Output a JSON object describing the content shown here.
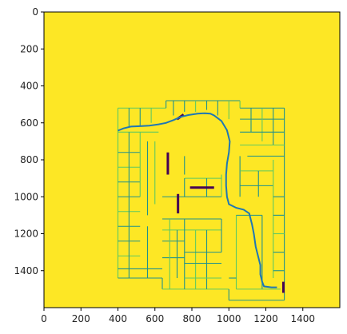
{
  "figure": {
    "type": "imshow-map",
    "xlim": [
      0,
      1600
    ],
    "ylim": [
      1600,
      0
    ],
    "xticks": [
      "0",
      "200",
      "400",
      "600",
      "800",
      "1000",
      "1200",
      "1400"
    ],
    "yticks": [
      "0",
      "200",
      "400",
      "600",
      "800",
      "1000",
      "1200",
      "1400"
    ],
    "colors": {
      "background": "#fde725",
      "walls": "#21918c",
      "walls_light": "#5ec962",
      "dark": "#440154",
      "path": "#1f77b4",
      "frame": "#000000"
    }
  },
  "chart_data": {
    "type": "heatmap",
    "colormap": "viridis",
    "xlim": [
      0,
      1600
    ],
    "ylim": [
      1600,
      0
    ],
    "path": {
      "color": "#1f77b4",
      "points": [
        [
          400,
          642
        ],
        [
          430,
          630
        ],
        [
          470,
          620
        ],
        [
          520,
          618
        ],
        [
          570,
          615
        ],
        [
          620,
          608
        ],
        [
          660,
          600
        ],
        [
          700,
          585
        ],
        [
          740,
          568
        ],
        [
          780,
          558
        ],
        [
          830,
          550
        ],
        [
          870,
          548
        ],
        [
          900,
          550
        ],
        [
          920,
          560
        ],
        [
          960,
          590
        ],
        [
          990,
          640
        ],
        [
          1005,
          700
        ],
        [
          1000,
          760
        ],
        [
          990,
          820
        ],
        [
          985,
          880
        ],
        [
          985,
          940
        ],
        [
          990,
          1000
        ],
        [
          1000,
          1040
        ],
        [
          1040,
          1060
        ],
        [
          1080,
          1070
        ],
        [
          1110,
          1090
        ],
        [
          1125,
          1150
        ],
        [
          1135,
          1200
        ],
        [
          1145,
          1270
        ],
        [
          1160,
          1330
        ],
        [
          1170,
          1370
        ],
        [
          1170,
          1420
        ],
        [
          1180,
          1460
        ],
        [
          1190,
          1485
        ],
        [
          1230,
          1490
        ],
        [
          1260,
          1490
        ]
      ]
    },
    "dark_segments": [
      [
        [
          720,
          580
        ],
        [
          755,
          555
        ]
      ],
      [
        [
          670,
          760
        ],
        [
          670,
          880
        ]
      ],
      [
        [
          725,
          985
        ],
        [
          725,
          1090
        ]
      ],
      [
        [
          790,
          950
        ],
        [
          920,
          950
        ]
      ],
      [
        [
          1295,
          1460
        ],
        [
          1295,
          1520
        ]
      ]
    ]
  }
}
